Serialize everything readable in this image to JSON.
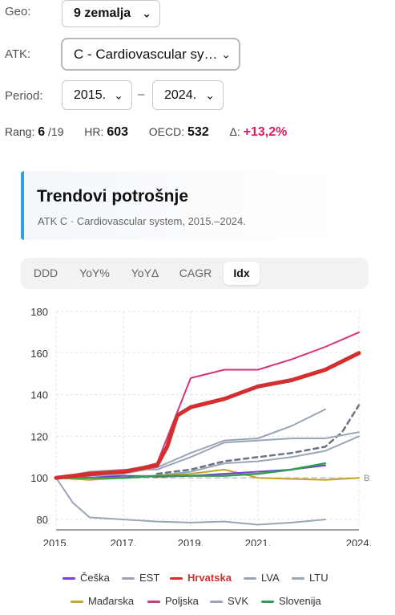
{
  "filters": {
    "geo_label": "Geo:",
    "geo_value": "9 zemalja",
    "atk_label": "ATK:",
    "atk_value": "C - Cardiovascular sy…",
    "period_label": "Period:",
    "period_from": "2015.",
    "period_sep": "–",
    "period_to": "2024."
  },
  "stats": {
    "rank_label": "Rang:",
    "rank_value": "6",
    "rank_total": "/19",
    "hr_label": "HR:",
    "hr_value": "603",
    "oecd_label": "OECD:",
    "oecd_value": "532",
    "delta_label": "Δ:",
    "delta_value": "+13,2%"
  },
  "card": {
    "title": "Trendovi potrošnje",
    "subtitle": "ATK C · Cardiovascular system, 2015.–2024."
  },
  "tabs": [
    "DDD",
    "YoY%",
    "YoYΔ",
    "CAGR",
    "Idx"
  ],
  "active_tab": "Idx",
  "colors": {
    "accent": "#29a3e0",
    "hrvatska": "#d32f2f",
    "poljska": "#d6337a",
    "madarska": "#c9a227",
    "slovenija": "#2e9e4f",
    "ceska": "#7b3fd4",
    "grey": "#9aa5b5",
    "delta": "#d81b60"
  },
  "chart_data": {
    "type": "line",
    "xlabel": "",
    "ylabel": "",
    "x_ticks": [
      "2015.",
      "2017.",
      "2019.",
      "2021.",
      "2024."
    ],
    "xlim": [
      2015,
      2024
    ],
    "ylim": [
      75,
      180
    ],
    "y_ticks": [
      80,
      100,
      120,
      140,
      160,
      180
    ],
    "grid": true,
    "baseline_label": "B",
    "series": [
      {
        "name": "Češka",
        "color": "#7b3fd4",
        "width": 2,
        "points": [
          [
            2015,
            100
          ],
          [
            2016,
            100
          ],
          [
            2017,
            101
          ],
          [
            2018,
            100.5
          ],
          [
            2019,
            101
          ],
          [
            2020,
            102
          ],
          [
            2021,
            103
          ],
          [
            2022,
            104
          ],
          [
            2023,
            106
          ]
        ]
      },
      {
        "name": "EST",
        "color": "#9aa5b5",
        "width": 2,
        "points": [
          [
            2015,
            100
          ],
          [
            2015.5,
            88
          ],
          [
            2016,
            81
          ],
          [
            2017,
            80
          ],
          [
            2018,
            79
          ],
          [
            2019,
            78.5
          ],
          [
            2020,
            79
          ],
          [
            2021,
            77.5
          ],
          [
            2022,
            78.5
          ],
          [
            2023,
            80
          ]
        ]
      },
      {
        "name": "Hrvatska",
        "color": "#d32f2f",
        "width": 5,
        "points": [
          [
            2015,
            100
          ],
          [
            2016,
            102
          ],
          [
            2017,
            103
          ],
          [
            2018,
            106
          ],
          [
            2018.3,
            115
          ],
          [
            2018.6,
            130
          ],
          [
            2019,
            134
          ],
          [
            2020,
            138
          ],
          [
            2021,
            144
          ],
          [
            2022,
            147
          ],
          [
            2023,
            152
          ],
          [
            2024,
            160
          ]
        ]
      },
      {
        "name": "LVA",
        "color": "#9aa5b5",
        "width": 2,
        "points": [
          [
            2015,
            100
          ],
          [
            2016,
            101
          ],
          [
            2017,
            102
          ],
          [
            2018,
            105
          ],
          [
            2019,
            112
          ],
          [
            2020,
            118
          ],
          [
            2021,
            119
          ],
          [
            2022,
            125
          ],
          [
            2023,
            133
          ]
        ]
      },
      {
        "name": "LTU",
        "color": "#9aa5b5",
        "width": 2,
        "points": [
          [
            2015,
            100
          ],
          [
            2016,
            103
          ],
          [
            2017,
            104
          ],
          [
            2018,
            104
          ],
          [
            2019,
            110
          ],
          [
            2020,
            117
          ],
          [
            2021,
            118
          ],
          [
            2022,
            119
          ],
          [
            2023,
            119
          ],
          [
            2024,
            122
          ]
        ]
      },
      {
        "name": "Mađarska",
        "color": "#c9a227",
        "width": 2,
        "points": [
          [
            2015,
            100
          ],
          [
            2016,
            99
          ],
          [
            2017,
            100
          ],
          [
            2018,
            101
          ],
          [
            2019,
            102
          ],
          [
            2020,
            104
          ],
          [
            2021,
            100
          ],
          [
            2022,
            99.5
          ],
          [
            2023,
            99
          ],
          [
            2024,
            100
          ]
        ]
      },
      {
        "name": "Poljska",
        "color": "#d6337a",
        "width": 2,
        "points": [
          [
            2015,
            100
          ],
          [
            2016,
            101
          ],
          [
            2017,
            103
          ],
          [
            2018,
            107
          ],
          [
            2019,
            148
          ],
          [
            2020,
            152
          ],
          [
            2021,
            152
          ],
          [
            2022,
            157
          ],
          [
            2023,
            163
          ],
          [
            2024,
            170
          ]
        ]
      },
      {
        "name": "SVK",
        "color": "#9aa5b5",
        "width": 2,
        "points": [
          [
            2015,
            100
          ],
          [
            2016,
            101
          ],
          [
            2017,
            101
          ],
          [
            2018,
            101
          ],
          [
            2019,
            103
          ],
          [
            2020,
            107
          ],
          [
            2021,
            108
          ],
          [
            2022,
            110
          ],
          [
            2023,
            113
          ],
          [
            2024,
            120
          ]
        ]
      },
      {
        "name": "Slovenija",
        "color": "#2e9e4f",
        "width": 2.5,
        "points": [
          [
            2015,
            100
          ],
          [
            2016,
            100
          ],
          [
            2017,
            100
          ],
          [
            2018,
            101
          ],
          [
            2019,
            101
          ],
          [
            2020,
            101
          ],
          [
            2021,
            102
          ],
          [
            2022,
            104
          ],
          [
            2023,
            107
          ]
        ]
      }
    ],
    "extra_lines": [
      {
        "style": "dashed",
        "color": "#6b7280",
        "points": [
          [
            2018,
            102
          ],
          [
            2019,
            104
          ],
          [
            2020,
            108
          ],
          [
            2021,
            110
          ],
          [
            2022,
            112
          ],
          [
            2023,
            115
          ],
          [
            2023.5,
            122
          ],
          [
            2024,
            135
          ]
        ]
      },
      {
        "style": "dashed",
        "color": "#b9bec7",
        "points": [
          [
            2015,
            100
          ],
          [
            2024,
            100
          ]
        ]
      }
    ]
  }
}
